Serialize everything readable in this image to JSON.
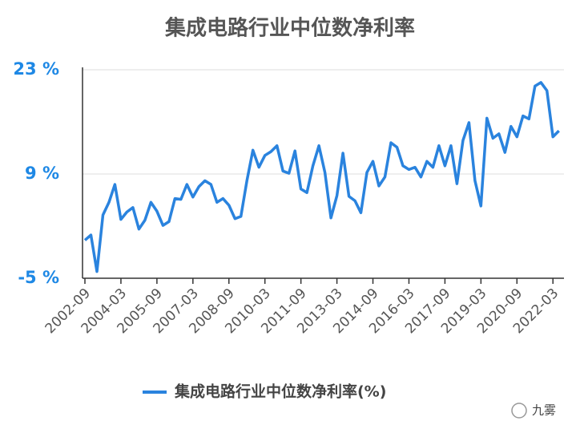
{
  "chart_data": {
    "type": "line",
    "title": "集成电路行业中位数净利率",
    "categories": [
      "2002-09",
      null,
      null,
      null,
      null,
      null,
      "2004-03",
      null,
      null,
      null,
      null,
      null,
      "2005-09",
      null,
      null,
      null,
      null,
      null,
      "2007-03",
      null,
      null,
      null,
      null,
      null,
      "2008-09",
      null,
      null,
      null,
      null,
      null,
      "2010-03",
      null,
      null,
      null,
      null,
      null,
      "2011-09",
      null,
      null,
      null,
      null,
      null,
      "2013-03",
      null,
      null,
      null,
      null,
      null,
      "2014-09",
      null,
      null,
      null,
      null,
      null,
      "2016-03",
      null,
      null,
      null,
      null,
      null,
      "2017-09",
      null,
      null,
      null,
      null,
      null,
      "2019-03",
      null,
      null,
      null,
      null,
      null,
      "2020-09",
      null,
      null,
      null,
      null,
      null,
      "2022-03",
      null
    ],
    "series": [
      {
        "name": "集成电路行业中位数净利率(%)",
        "color": "#2a83de",
        "values": [
          0.1,
          0.8,
          -4.1,
          3.5,
          5.2,
          7.6,
          2.9,
          3.9,
          4.5,
          1.6,
          2.8,
          5.2,
          4.0,
          2.1,
          2.6,
          5.7,
          5.6,
          7.6,
          5.9,
          7.3,
          8.1,
          7.6,
          5.2,
          5.7,
          4.8,
          3.0,
          3.3,
          8.1,
          12.2,
          9.9,
          11.5,
          12.0,
          12.8,
          9.4,
          9.1,
          12.1,
          7.0,
          6.5,
          10.1,
          12.8,
          9.2,
          3.1,
          6.1,
          11.8,
          6.0,
          5.4,
          3.8,
          9.2,
          10.7,
          7.4,
          8.6,
          13.2,
          12.6,
          10.1,
          9.6,
          9.9,
          8.6,
          10.7,
          9.9,
          12.8,
          10.1,
          12.8,
          7.7,
          13.5,
          15.9,
          8.1,
          4.7,
          16.5,
          13.8,
          14.4,
          11.9,
          15.4,
          14.0,
          16.8,
          16.4,
          20.8,
          21.3,
          20.2,
          14.0,
          14.8
        ]
      }
    ],
    "ylim": [
      -5,
      23
    ],
    "yticks": [
      {
        "value": -5,
        "label": "-5 %"
      },
      {
        "value": 9,
        "label": "9 %"
      },
      {
        "value": 23,
        "label": "23 %"
      }
    ],
    "grid": true,
    "legend": "bottom"
  },
  "watermark": "九雾"
}
